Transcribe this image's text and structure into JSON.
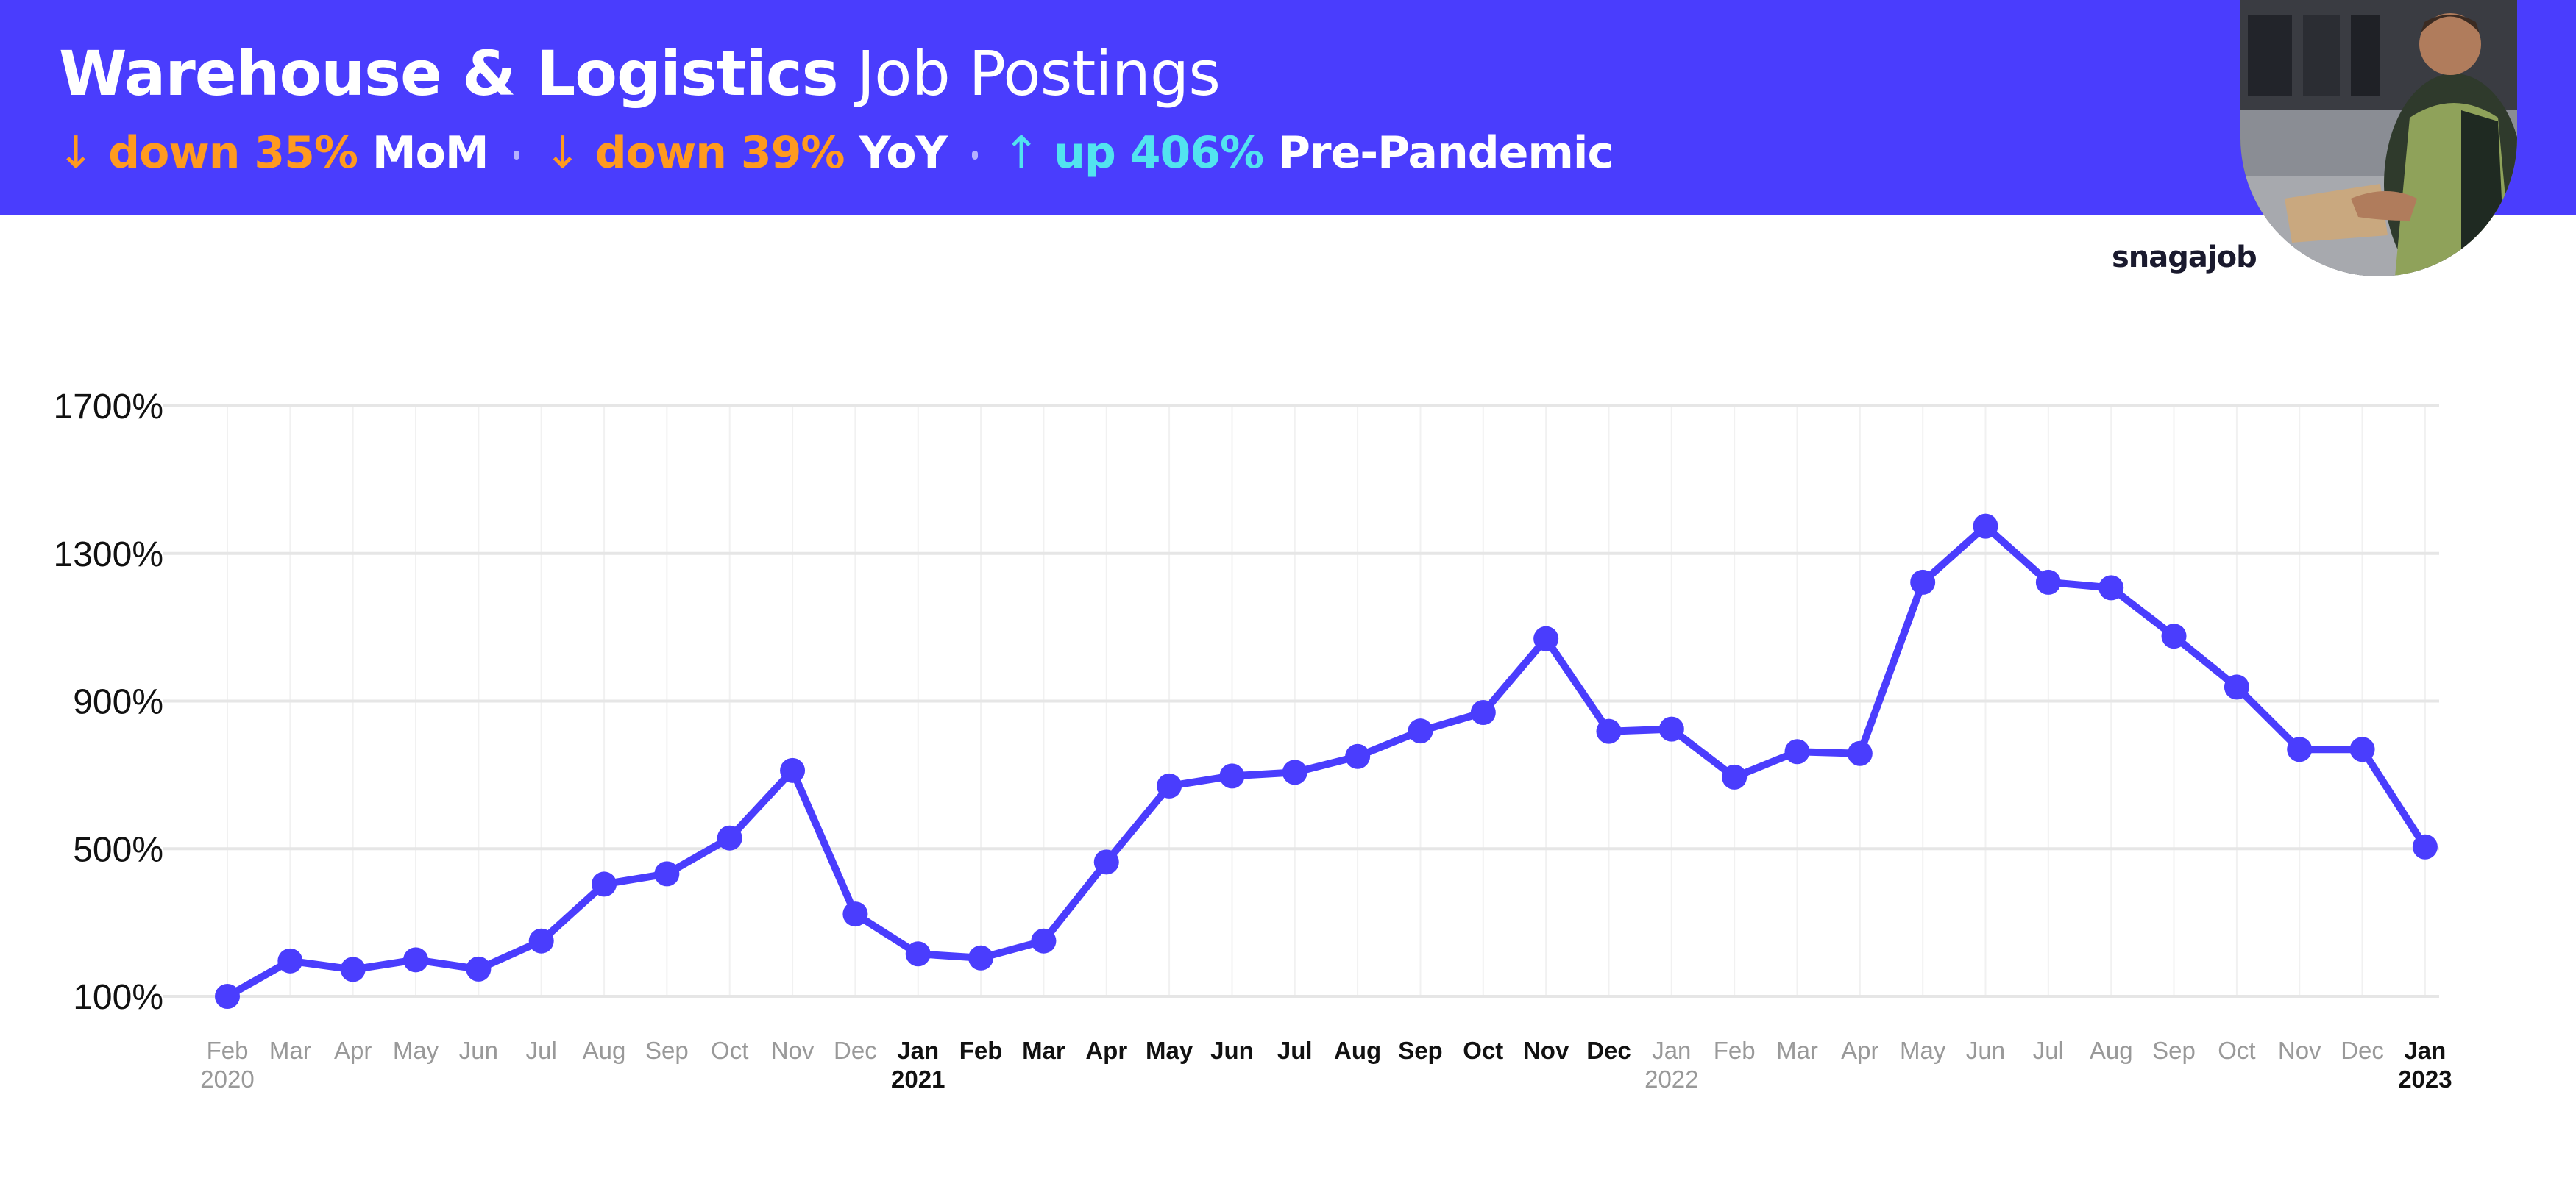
{
  "header": {
    "title_bold": "Warehouse & Logistics",
    "title_rest": " Job Postings",
    "stats": [
      {
        "arrow": "↓",
        "label": "down 35%",
        "suffix": "MoM",
        "direction": "down"
      },
      {
        "arrow": "↓",
        "label": "down 39%",
        "suffix": "YoY",
        "direction": "down"
      },
      {
        "arrow": "↑",
        "label": "up 406%",
        "suffix": "Pre-Pandemic",
        "direction": "up"
      }
    ],
    "brand": "snagajob"
  },
  "colors": {
    "banner": "#4a3dfd",
    "line": "#4a3dfd",
    "down": "#ff9a1f",
    "up": "#52e3ef",
    "grid": "#e6e6e6",
    "axis_text": "#111111",
    "month_muted": "#999999"
  },
  "chart_data": {
    "type": "line",
    "title": "",
    "xlabel": "",
    "ylabel": "",
    "ylim": [
      100,
      1700
    ],
    "yticks": [
      "1700%",
      "1300%",
      "900%",
      "500%",
      "100%"
    ],
    "grid": true,
    "x": [
      "Feb",
      "Mar",
      "Apr",
      "May",
      "Jun",
      "Jul",
      "Aug",
      "Sep",
      "Oct",
      "Nov",
      "Dec",
      "Jan",
      "Feb",
      "Mar",
      "Apr",
      "May",
      "Jun",
      "Jul",
      "Aug",
      "Sep",
      "Oct",
      "Nov",
      "Dec",
      "Jan",
      "Feb",
      "Mar",
      "Apr",
      "May",
      "Jun",
      "Jul",
      "Aug",
      "Sep",
      "Oct",
      "Nov",
      "Dec",
      "Jan"
    ],
    "x_years": {
      "0": "2020",
      "11": "2021",
      "23": "2022",
      "35": "2023"
    },
    "x_muted": [
      0,
      1,
      2,
      3,
      4,
      5,
      6,
      7,
      8,
      9,
      10,
      23,
      24,
      25,
      26,
      27,
      28,
      29,
      30,
      31,
      32,
      33,
      34
    ],
    "series": [
      {
        "values": [
          100,
          196,
          173,
          199,
          174,
          250,
          404,
          432,
          529,
          712,
          323,
          215,
          204,
          250,
          464,
          670,
          697,
          707,
          750,
          819,
          869,
          1069,
          818,
          824,
          694,
          763,
          758,
          1222,
          1374,
          1222,
          1207,
          1076,
          938,
          769,
          769,
          505
        ]
      }
    ]
  }
}
